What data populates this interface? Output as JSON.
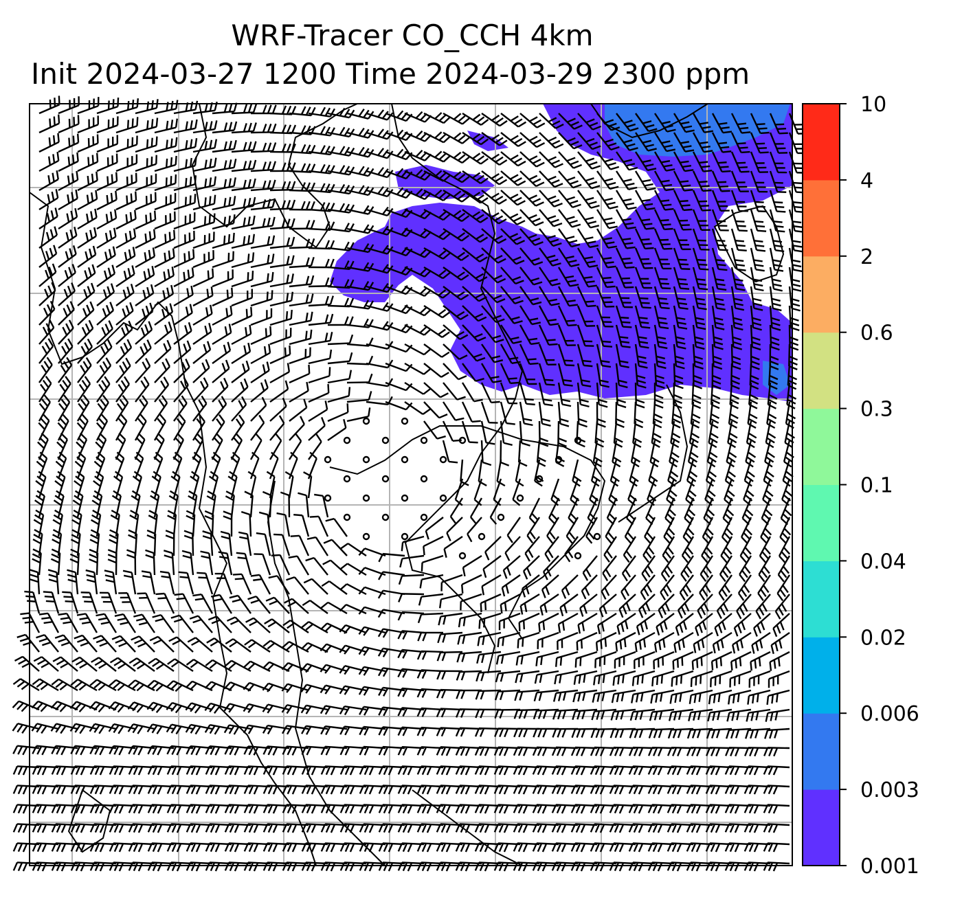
{
  "title": {
    "line1": "WRF-Tracer CO_CCH 4km",
    "line2": "Init 2024-03-27 1200 Time 2024-03-29 2300 ppm"
  },
  "colorbar": {
    "levels": [
      "0.001",
      "0.003",
      "0.006",
      "0.02",
      "0.04",
      "0.1",
      "0.3",
      "0.6",
      "2",
      "4",
      "10"
    ],
    "colors": [
      "#6030ff",
      "#3379f0",
      "#00b0ea",
      "#2dded3",
      "#5ff8b0",
      "#8ff89a",
      "#d2e182",
      "#fcad62",
      "#ff7038",
      "#ff2a18"
    ]
  },
  "layers": {
    "wind": "wind-barbs",
    "coast": "coastlines",
    "grid": "gridlines",
    "tracer": "tracer-contours"
  }
}
